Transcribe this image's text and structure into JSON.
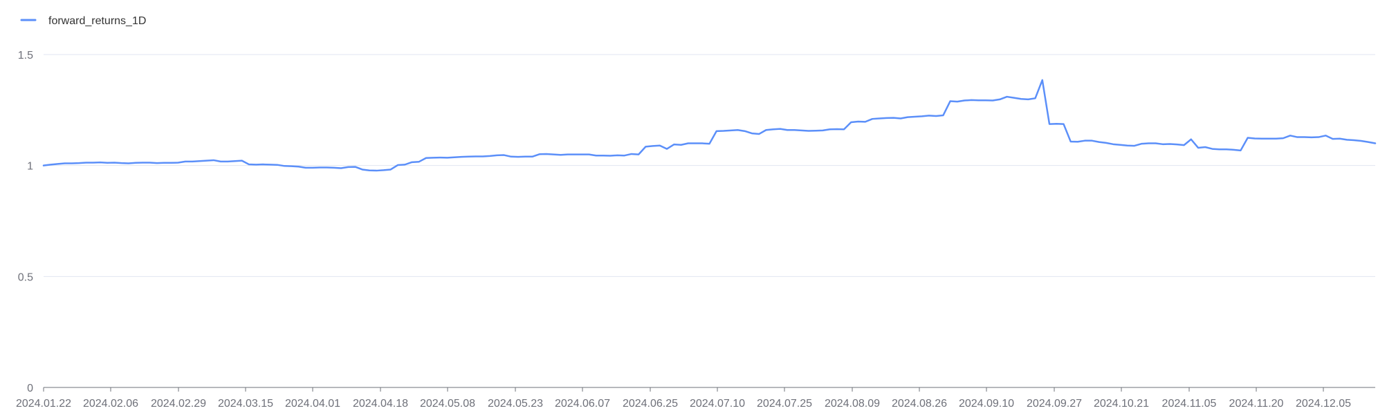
{
  "chart_data": {
    "type": "line",
    "title": "",
    "xlabel": "",
    "ylabel": "",
    "ylim": [
      0,
      1.5
    ],
    "y_ticks": [
      "0",
      "0.5",
      "1",
      "1.5"
    ],
    "y_tick_values": [
      0,
      0.5,
      1,
      1.5
    ],
    "x_tick_labels": [
      "2024.01.22",
      "2024.02.06",
      "2024.02.29",
      "2024.03.15",
      "2024.04.01",
      "2024.04.18",
      "2024.05.08",
      "2024.05.23",
      "2024.06.07",
      "2024.06.25",
      "2024.07.10",
      "2024.07.25",
      "2024.08.09",
      "2024.08.26",
      "2024.09.10",
      "2024.09.27",
      "2024.10.21",
      "2024.11.05",
      "2024.11.20",
      "2024.12.05"
    ],
    "grid": true,
    "legend_position": "top-left",
    "series": [
      {
        "name": "forward_returns_1D",
        "color": "#5b8ff9",
        "values": [
          1.0,
          1.004,
          1.007,
          1.01,
          1.01,
          1.011,
          1.013,
          1.013,
          1.014,
          1.012,
          1.013,
          1.011,
          1.01,
          1.012,
          1.013,
          1.013,
          1.011,
          1.012,
          1.012,
          1.013,
          1.018,
          1.018,
          1.02,
          1.022,
          1.024,
          1.018,
          1.018,
          1.02,
          1.022,
          1.005,
          1.004,
          1.005,
          1.004,
          1.003,
          0.998,
          0.997,
          0.995,
          0.99,
          0.99,
          0.991,
          0.991,
          0.99,
          0.988,
          0.993,
          0.994,
          0.982,
          0.978,
          0.977,
          0.979,
          0.982,
          1.002,
          1.004,
          1.015,
          1.017,
          1.034,
          1.035,
          1.036,
          1.035,
          1.037,
          1.039,
          1.04,
          1.041,
          1.041,
          1.043,
          1.046,
          1.047,
          1.04,
          1.039,
          1.04,
          1.04,
          1.051,
          1.052,
          1.05,
          1.048,
          1.05,
          1.05,
          1.05,
          1.05,
          1.045,
          1.045,
          1.044,
          1.046,
          1.045,
          1.052,
          1.05,
          1.085,
          1.088,
          1.09,
          1.075,
          1.095,
          1.093,
          1.1,
          1.1,
          1.1,
          1.098,
          1.155,
          1.156,
          1.158,
          1.16,
          1.155,
          1.145,
          1.142,
          1.16,
          1.163,
          1.165,
          1.16,
          1.16,
          1.158,
          1.156,
          1.157,
          1.158,
          1.163,
          1.164,
          1.163,
          1.195,
          1.198,
          1.197,
          1.21,
          1.212,
          1.214,
          1.215,
          1.212,
          1.218,
          1.22,
          1.222,
          1.225,
          1.223,
          1.226,
          1.29,
          1.288,
          1.293,
          1.295,
          1.294,
          1.294,
          1.293,
          1.298,
          1.31,
          1.305,
          1.3,
          1.298,
          1.303,
          1.385,
          1.187,
          1.188,
          1.187,
          1.108,
          1.107,
          1.112,
          1.112,
          1.106,
          1.102,
          1.096,
          1.093,
          1.09,
          1.089,
          1.098,
          1.1,
          1.1,
          1.096,
          1.097,
          1.095,
          1.092,
          1.118,
          1.08,
          1.083,
          1.075,
          1.073,
          1.073,
          1.071,
          1.068,
          1.125,
          1.122,
          1.121,
          1.121,
          1.121,
          1.123,
          1.135,
          1.128,
          1.128,
          1.127,
          1.128,
          1.135,
          1.12,
          1.121,
          1.116,
          1.114,
          1.111,
          1.106,
          1.1
        ]
      }
    ]
  }
}
